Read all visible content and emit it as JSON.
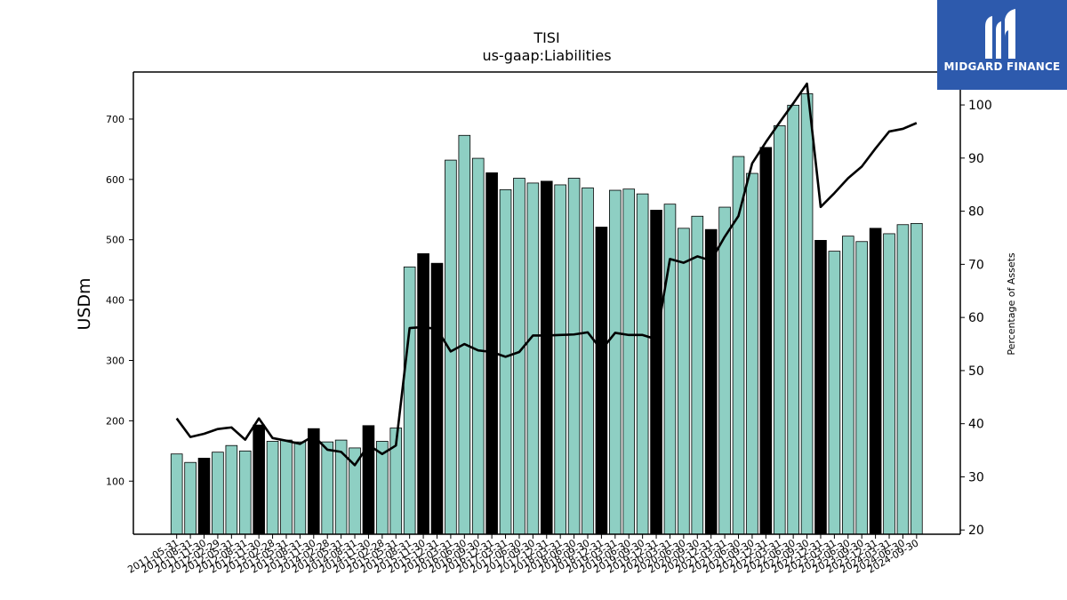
{
  "brand": {
    "name": "MIDGARD FINANCE",
    "color": "#2d5aad"
  },
  "chart_data": {
    "type": "bar",
    "title": "TISI",
    "subtitle": "us-gaap:Liabilities",
    "ylabel": "USDm",
    "y2label": "Percentage of Assets",
    "ylim": [
      12,
      778
    ],
    "y2lim": [
      19.2,
      106.2
    ],
    "yticks": [
      100,
      200,
      300,
      400,
      500,
      600,
      700
    ],
    "y2ticks": [
      20,
      30,
      40,
      50,
      60,
      70,
      80,
      90,
      100
    ],
    "bar_color": "#8ecfc3",
    "highlight_color": "#000000",
    "line_color": "#000000",
    "grid": false,
    "categories": [
      "2011-05-31",
      "2011-08-31",
      "2011-11-30",
      "2012-02-29",
      "2012-05-31",
      "2012-08-31",
      "2012-11-30",
      "2013-02-28",
      "2013-05-31",
      "2013-08-31",
      "2013-11-30",
      "2014-02-28",
      "2014-05-31",
      "2014-08-31",
      "2014-11-30",
      "2015-02-28",
      "2015-05-31",
      "2015-08-31",
      "2015-11-30",
      "2015-12-31",
      "2016-03-31",
      "2016-06-30",
      "2016-09-30",
      "2016-12-31",
      "2017-03-31",
      "2017-06-30",
      "2017-09-30",
      "2017-12-31",
      "2018-03-31",
      "2018-06-30",
      "2018-09-30",
      "2018-12-31",
      "2019-03-31",
      "2019-06-30",
      "2019-09-30",
      "2019-12-31",
      "2020-03-31",
      "2020-06-30",
      "2020-09-30",
      "2020-12-31",
      "2021-03-31",
      "2021-06-30",
      "2021-09-30",
      "2021-12-31",
      "2022-03-31",
      "2022-06-30",
      "2022-09-30",
      "2022-12-31",
      "2023-03-31",
      "2023-06-30",
      "2023-09-30",
      "2023-12-31",
      "2024-03-31",
      "2024-06-30",
      "2024-09-30"
    ],
    "series": [
      {
        "type": "bar",
        "values": [
          145,
          131,
          138,
          148,
          159,
          150,
          193,
          166,
          168,
          165,
          187,
          165,
          168,
          155,
          192,
          166,
          188,
          455,
          477,
          461,
          632,
          673,
          635,
          611,
          583,
          602,
          594,
          597,
          591,
          602,
          586,
          521,
          582,
          584,
          576,
          549,
          559,
          519,
          539,
          517,
          554,
          638,
          610,
          653,
          689,
          723,
          742,
          499,
          481,
          506,
          497,
          519,
          510,
          525,
          527
        ],
        "highlight": [
          false,
          false,
          true,
          false,
          false,
          false,
          true,
          false,
          false,
          false,
          true,
          false,
          false,
          false,
          true,
          false,
          false,
          false,
          true,
          true,
          false,
          false,
          false,
          true,
          false,
          false,
          false,
          true,
          false,
          false,
          false,
          true,
          false,
          false,
          false,
          true,
          false,
          false,
          false,
          true,
          false,
          false,
          false,
          true,
          false,
          false,
          false,
          true,
          false,
          false,
          false,
          true,
          false,
          false,
          false
        ]
      },
      {
        "type": "line",
        "axis": "right",
        "values": [
          41,
          37.5,
          38.1,
          39,
          39.3,
          37,
          41,
          37.3,
          36.8,
          36.2,
          37.7,
          35.1,
          34.7,
          32.2,
          36,
          34.3,
          35.9,
          58,
          58.2,
          57.8,
          53.6,
          55,
          53.8,
          53.5,
          52.6,
          53.5,
          56.6,
          56.6,
          56.7,
          56.8,
          57.2,
          53.9,
          57.1,
          56.7,
          56.7,
          55.9,
          71,
          70.3,
          71.5,
          70.7,
          75.2,
          79.1,
          89,
          93,
          96.7,
          100.3,
          104,
          80.8,
          83.4,
          86.2,
          88.4,
          91.8,
          95,
          95.5,
          96.6
        ]
      }
    ]
  }
}
